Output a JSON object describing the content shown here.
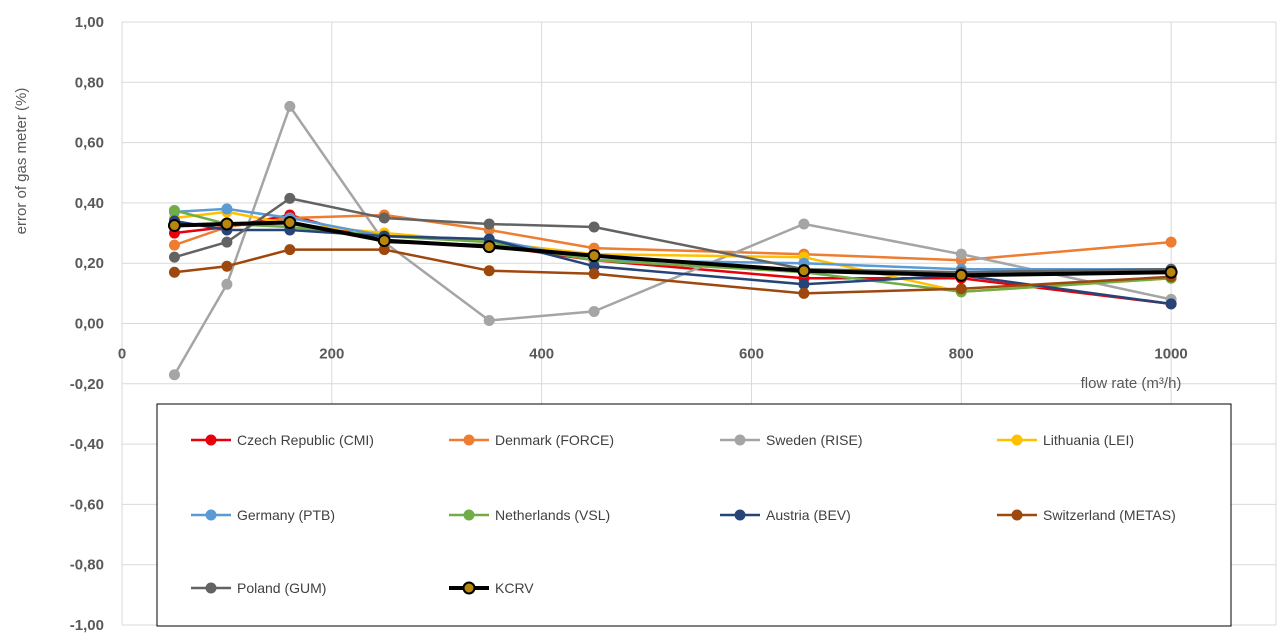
{
  "chart_data": {
    "type": "line",
    "title": "",
    "xlabel": "flow rate (m³/h)",
    "ylabel": "error of gas meter (%)",
    "xlim": [
      0,
      1100
    ],
    "ylim": [
      -1.0,
      1.0
    ],
    "x_ticks": [
      "0",
      "200",
      "400",
      "600",
      "800",
      "1000"
    ],
    "y_ticks": [
      "1,00",
      "0,80",
      "0,60",
      "0,40",
      "0,20",
      "0,00",
      "-0,20",
      "-0,40",
      "-0,60",
      "-0,80",
      "-1,00"
    ],
    "grid": true,
    "legend_position": "bottom",
    "x": [
      50,
      100,
      160,
      250,
      350,
      450,
      650,
      800,
      1000
    ],
    "series": [
      {
        "name": "Czech Republic (CMI)",
        "color": "#e8000b",
        "values": [
          0.3,
          0.32,
          0.36,
          0.27,
          0.26,
          0.21,
          0.15,
          0.15,
          0.065
        ]
      },
      {
        "name": "Denmark (FORCE)",
        "color": "#ed7d31",
        "values": [
          0.26,
          0.32,
          0.35,
          0.36,
          0.31,
          0.25,
          0.23,
          0.21,
          0.27
        ]
      },
      {
        "name": "Sweden (RISE)",
        "color": "#a5a5a5",
        "values": [
          -0.17,
          0.13,
          0.72,
          0.27,
          0.01,
          0.04,
          0.33,
          0.23,
          0.08
        ]
      },
      {
        "name": "Lithuania (LEI)",
        "color": "#ffc000",
        "values": [
          0.35,
          0.37,
          0.33,
          0.3,
          0.27,
          0.23,
          0.22,
          0.105,
          0.15
        ]
      },
      {
        "name": "Germany (PTB)",
        "color": "#5b9bd5",
        "values": [
          0.37,
          0.38,
          0.35,
          0.29,
          0.28,
          0.21,
          0.2,
          0.18,
          0.18
        ]
      },
      {
        "name": "Netherlands (VSL)",
        "color": "#70ad47",
        "values": [
          0.375,
          0.33,
          0.32,
          0.29,
          0.27,
          0.21,
          0.17,
          0.105,
          0.15
        ]
      },
      {
        "name": "Austria (BEV)",
        "color": "#264478",
        "values": [
          0.34,
          0.31,
          0.31,
          0.29,
          0.28,
          0.19,
          0.13,
          0.16,
          0.065
        ]
      },
      {
        "name": "Switzerland (METAS)",
        "color": "#9e480e",
        "values": [
          0.17,
          0.19,
          0.245,
          0.245,
          0.175,
          0.165,
          0.1,
          0.115,
          0.155
        ]
      },
      {
        "name": "Poland (GUM)",
        "color": "#636363",
        "values": [
          0.22,
          0.27,
          0.415,
          0.35,
          0.33,
          0.32,
          0.18,
          0.17,
          0.18
        ]
      },
      {
        "name": "KCRV",
        "color": "#000000",
        "marker_fill": "#b8860b",
        "values": [
          0.325,
          0.33,
          0.335,
          0.275,
          0.255,
          0.225,
          0.175,
          0.16,
          0.17
        ]
      }
    ]
  }
}
